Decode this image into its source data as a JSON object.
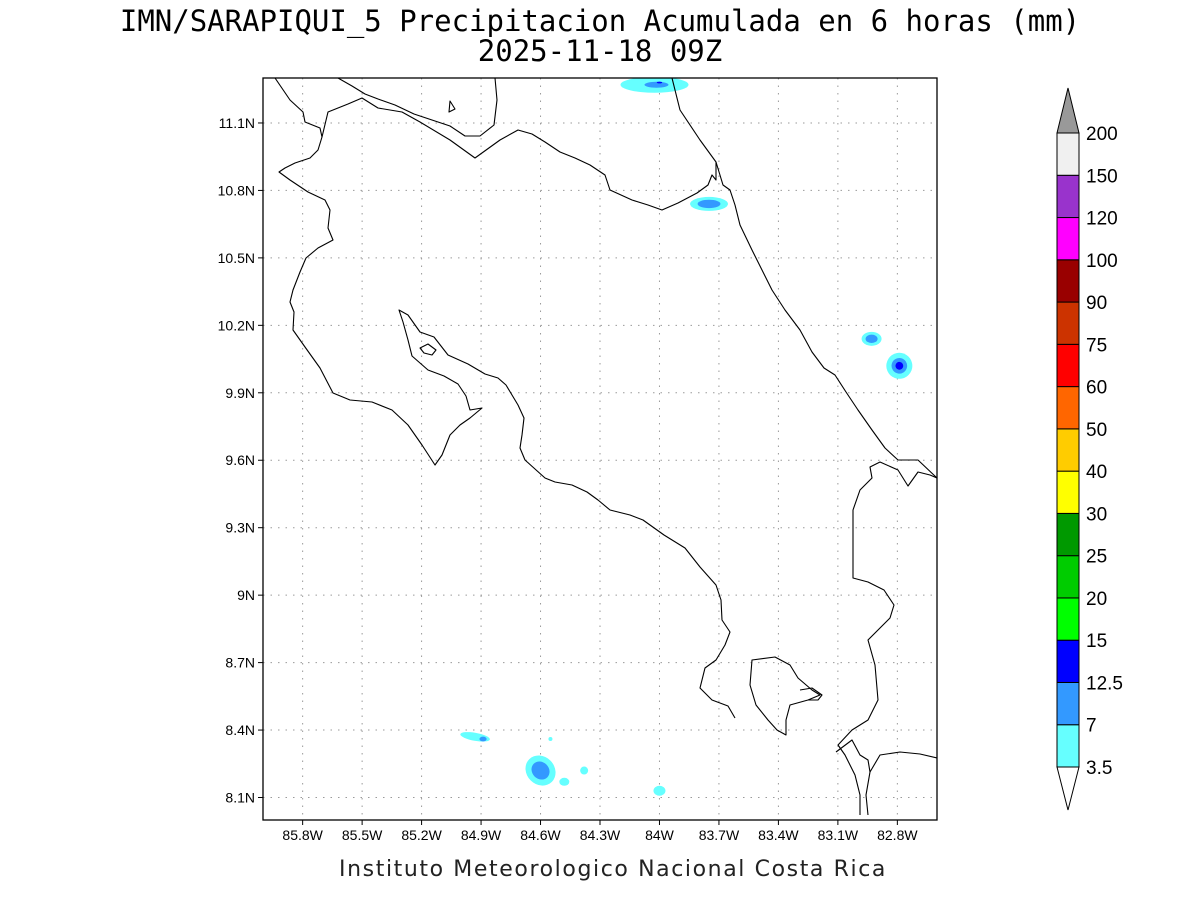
{
  "title": {
    "line1": "IMN/SARAPIQUI_5 Precipitacion Acumulada en 6 horas (mm)",
    "line2": "2025-11-18 09Z"
  },
  "credit": "Instituto Meteorologico Nacional Costa Rica",
  "map": {
    "lon_range": [
      -86.0,
      -82.6
    ],
    "lat_range": [
      8.0,
      11.3
    ],
    "lon_ticks": [
      {
        "value": -85.8,
        "label": "85.8W"
      },
      {
        "value": -85.5,
        "label": "85.5W"
      },
      {
        "value": -85.2,
        "label": "85.2W"
      },
      {
        "value": -84.9,
        "label": "84.9W"
      },
      {
        "value": -84.6,
        "label": "84.6W"
      },
      {
        "value": -84.3,
        "label": "84.3W"
      },
      {
        "value": -84.0,
        "label": "84W"
      },
      {
        "value": -83.7,
        "label": "83.7W"
      },
      {
        "value": -83.4,
        "label": "83.4W"
      },
      {
        "value": -83.1,
        "label": "83.1W"
      },
      {
        "value": -82.8,
        "label": "82.8W"
      }
    ],
    "lat_ticks": [
      {
        "value": 11.1,
        "label": "11.1N"
      },
      {
        "value": 10.8,
        "label": "10.8N"
      },
      {
        "value": 10.5,
        "label": "10.5N"
      },
      {
        "value": 10.2,
        "label": "10.2N"
      },
      {
        "value": 9.9,
        "label": "9.9N"
      },
      {
        "value": 9.6,
        "label": "9.6N"
      },
      {
        "value": 9.3,
        "label": "9.3N"
      },
      {
        "value": 9.0,
        "label": "9N"
      },
      {
        "value": 8.7,
        "label": "8.7N"
      },
      {
        "value": 8.4,
        "label": "8.4N"
      },
      {
        "value": 8.1,
        "label": "8.1N"
      }
    ],
    "grid": "dotted",
    "precip_cells": [
      {
        "lon": -84.025,
        "lat": 11.27,
        "level": "3.5-7"
      },
      {
        "lon": -84.015,
        "lat": 11.27,
        "level": "7-12.5"
      },
      {
        "lon": -84.0,
        "lat": 11.28,
        "level": "12.5-15"
      },
      {
        "lon": -83.75,
        "lat": 10.74,
        "level": "3.5-7"
      },
      {
        "lon": -83.75,
        "lat": 10.74,
        "level": "7-12.5"
      },
      {
        "lon": -82.93,
        "lat": 10.14,
        "level": "3.5-7"
      },
      {
        "lon": -82.93,
        "lat": 10.14,
        "level": "7-12.5"
      },
      {
        "lon": -82.79,
        "lat": 10.02,
        "level": "3.5-7"
      },
      {
        "lon": -82.79,
        "lat": 10.02,
        "level": "7-12.5"
      },
      {
        "lon": -82.79,
        "lat": 10.02,
        "level": "12.5-15"
      },
      {
        "lon": -84.93,
        "lat": 8.37,
        "level": "3.5-7"
      },
      {
        "lon": -84.89,
        "lat": 8.36,
        "level": "7-12.5"
      },
      {
        "lon": -84.6,
        "lat": 8.22,
        "level": "3.5-7"
      },
      {
        "lon": -84.6,
        "lat": 8.22,
        "level": "7-12.5"
      },
      {
        "lon": -84.48,
        "lat": 8.17,
        "level": "3.5-7"
      },
      {
        "lon": -84.38,
        "lat": 8.22,
        "level": "3.5-7"
      },
      {
        "lon": -84.0,
        "lat": 8.13,
        "level": "3.5-7"
      },
      {
        "lon": -84.55,
        "lat": 8.36,
        "level": "3.5-7"
      }
    ]
  },
  "legend": {
    "top_label": "200",
    "bins": [
      {
        "label": "3.5",
        "color": "#66ffff"
      },
      {
        "label": "7",
        "color": "#3399ff"
      },
      {
        "label": "12.5",
        "color": "#0000ff"
      },
      {
        "label": "15",
        "color": "#00ff00"
      },
      {
        "label": "20",
        "color": "#00cc00"
      },
      {
        "label": "25",
        "color": "#009900"
      },
      {
        "label": "30",
        "color": "#ffff00"
      },
      {
        "label": "40",
        "color": "#ffcc00"
      },
      {
        "label": "50",
        "color": "#ff6600"
      },
      {
        "label": "60",
        "color": "#ff0000"
      },
      {
        "label": "75",
        "color": "#cc3300"
      },
      {
        "label": "90",
        "color": "#990000"
      },
      {
        "label": "100",
        "color": "#ff00ff"
      },
      {
        "label": "120",
        "color": "#9933cc"
      },
      {
        "label": "150",
        "color": "#f0f0f0"
      }
    ],
    "over_color": "#999999",
    "under_color": "#ffffff"
  }
}
